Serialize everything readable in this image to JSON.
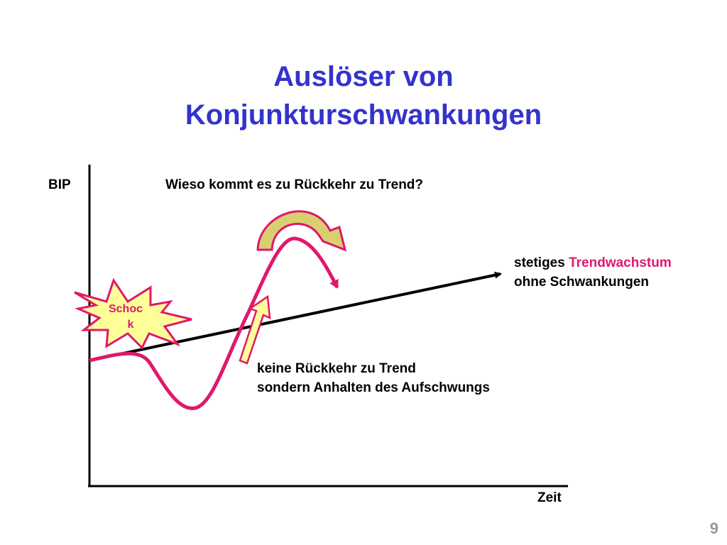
{
  "title": {
    "lines": [
      "Auslöser von",
      "Konjunkturschwankungen"
    ]
  },
  "axes": {
    "y_label": "BIP",
    "x_label": "Zeit"
  },
  "question": "Wieso kommt es zu Rückkehr zu Trend?",
  "trend_label": {
    "prefix": "stetiges ",
    "highlight": "Trendwachstum",
    "line2": "ohne Schwankungen"
  },
  "shock": {
    "lines": [
      "Schoc",
      "k"
    ]
  },
  "no_return_label": {
    "lines": [
      "keine Rückkehr zu Trend",
      "sondern Anhalten des Aufschwungs"
    ]
  },
  "page_number": "9"
}
